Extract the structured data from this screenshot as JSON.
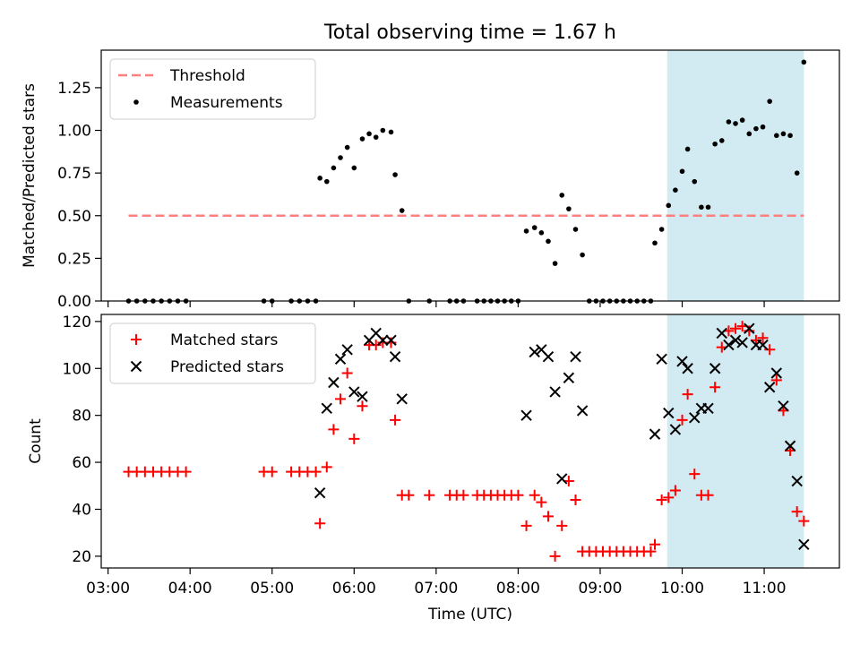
{
  "figure": {
    "title": "Total observing time = 1.67 h"
  },
  "chart_data": [
    {
      "type": "scatter",
      "panel": "top",
      "title": "Total observing time = 1.67 h",
      "xlabel": "",
      "ylabel": "Matched/Predicted stars",
      "xlim": [
        "02:55",
        "11:55"
      ],
      "ylim": [
        0,
        1.47
      ],
      "yticks": [
        0.0,
        0.25,
        0.5,
        0.75,
        1.0,
        1.25
      ],
      "ytick_labels": [
        "0.00",
        "0.25",
        "0.50",
        "0.75",
        "1.00",
        "1.25"
      ],
      "legend_position": "top-left",
      "highlight_span": {
        "from": "09:49",
        "to": "11:29",
        "color": "#add8e6"
      },
      "series": [
        {
          "name": "Threshold",
          "kind": "dashed-line",
          "color": "#ff7f7f",
          "x": [
            "03:15",
            "11:29"
          ],
          "y": [
            0.5,
            0.5
          ]
        },
        {
          "name": "Measurements",
          "kind": "points",
          "color": "#000000",
          "points": [
            [
              "03:15",
              0
            ],
            [
              "03:21",
              0
            ],
            [
              "03:27",
              0
            ],
            [
              "03:33",
              0
            ],
            [
              "03:39",
              0
            ],
            [
              "03:45",
              0
            ],
            [
              "03:51",
              0
            ],
            [
              "03:57",
              0
            ],
            [
              "04:54",
              0
            ],
            [
              "05:00",
              0
            ],
            [
              "05:14",
              0
            ],
            [
              "05:20",
              0
            ],
            [
              "05:26",
              0
            ],
            [
              "05:32",
              0
            ],
            [
              "05:35",
              0.72
            ],
            [
              "05:40",
              0.7
            ],
            [
              "05:45",
              0.78
            ],
            [
              "05:50",
              0.84
            ],
            [
              "05:55",
              0.9
            ],
            [
              "06:00",
              0.78
            ],
            [
              "06:06",
              0.95
            ],
            [
              "06:11",
              0.98
            ],
            [
              "06:16",
              0.96
            ],
            [
              "06:21",
              1.0
            ],
            [
              "06:27",
              0.99
            ],
            [
              "06:30",
              0.74
            ],
            [
              "06:35",
              0.53
            ],
            [
              "06:40",
              0
            ],
            [
              "06:55",
              0
            ],
            [
              "07:10",
              0
            ],
            [
              "07:15",
              0
            ],
            [
              "07:20",
              0
            ],
            [
              "07:30",
              0
            ],
            [
              "07:35",
              0
            ],
            [
              "07:40",
              0
            ],
            [
              "07:45",
              0
            ],
            [
              "07:50",
              0
            ],
            [
              "07:55",
              0
            ],
            [
              "08:00",
              0
            ],
            [
              "08:06",
              0.41
            ],
            [
              "08:12",
              0.43
            ],
            [
              "08:17",
              0.4
            ],
            [
              "08:22",
              0.35
            ],
            [
              "08:27",
              0.22
            ],
            [
              "08:32",
              0.62
            ],
            [
              "08:37",
              0.54
            ],
            [
              "08:42",
              0.42
            ],
            [
              "08:47",
              0.27
            ],
            [
              "08:52",
              0
            ],
            [
              "08:57",
              0
            ],
            [
              "09:02",
              0
            ],
            [
              "09:07",
              0
            ],
            [
              "09:12",
              0
            ],
            [
              "09:17",
              0
            ],
            [
              "09:22",
              0
            ],
            [
              "09:27",
              0
            ],
            [
              "09:32",
              0
            ],
            [
              "09:37",
              0
            ],
            [
              "09:40",
              0.34
            ],
            [
              "09:45",
              0.42
            ],
            [
              "09:50",
              0.56
            ],
            [
              "09:55",
              0.65
            ],
            [
              "10:00",
              0.76
            ],
            [
              "10:04",
              0.89
            ],
            [
              "10:09",
              0.7
            ],
            [
              "10:14",
              0.55
            ],
            [
              "10:19",
              0.55
            ],
            [
              "10:24",
              0.92
            ],
            [
              "10:29",
              0.94
            ],
            [
              "10:34",
              1.05
            ],
            [
              "10:39",
              1.04
            ],
            [
              "10:44",
              1.06
            ],
            [
              "10:49",
              0.98
            ],
            [
              "10:54",
              1.01
            ],
            [
              "10:59",
              1.02
            ],
            [
              "11:04",
              1.17
            ],
            [
              "11:09",
              0.97
            ],
            [
              "11:14",
              0.98
            ],
            [
              "11:19",
              0.97
            ],
            [
              "11:24",
              0.75
            ],
            [
              "11:29",
              1.4
            ]
          ]
        }
      ]
    },
    {
      "type": "scatter",
      "panel": "bottom",
      "title": "",
      "xlabel": "Time (UTC)",
      "ylabel": "Count",
      "xlim": [
        "02:55",
        "11:55"
      ],
      "ylim": [
        15,
        123
      ],
      "yticks": [
        20,
        40,
        60,
        80,
        100,
        120
      ],
      "xticks": [
        "03:00",
        "04:00",
        "05:00",
        "06:00",
        "07:00",
        "08:00",
        "09:00",
        "10:00",
        "11:00"
      ],
      "legend_position": "top-left",
      "highlight_span": {
        "from": "09:49",
        "to": "11:29",
        "color": "#add8e6"
      },
      "series": [
        {
          "name": "Matched stars",
          "marker": "plus",
          "color": "#ff0000",
          "points": [
            [
              "03:15",
              56
            ],
            [
              "03:21",
              56
            ],
            [
              "03:27",
              56
            ],
            [
              "03:33",
              56
            ],
            [
              "03:39",
              56
            ],
            [
              "03:45",
              56
            ],
            [
              "03:51",
              56
            ],
            [
              "03:57",
              56
            ],
            [
              "04:54",
              56
            ],
            [
              "05:00",
              56
            ],
            [
              "05:14",
              56
            ],
            [
              "05:20",
              56
            ],
            [
              "05:26",
              56
            ],
            [
              "05:32",
              56
            ],
            [
              "05:35",
              34
            ],
            [
              "05:40",
              58
            ],
            [
              "05:45",
              74
            ],
            [
              "05:50",
              87
            ],
            [
              "05:55",
              98
            ],
            [
              "06:00",
              70
            ],
            [
              "06:06",
              84
            ],
            [
              "06:11",
              110
            ],
            [
              "06:16",
              110
            ],
            [
              "06:21",
              111
            ],
            [
              "06:27",
              111
            ],
            [
              "06:30",
              78
            ],
            [
              "06:35",
              46
            ],
            [
              "06:40",
              46
            ],
            [
              "06:55",
              46
            ],
            [
              "07:10",
              46
            ],
            [
              "07:15",
              46
            ],
            [
              "07:20",
              46
            ],
            [
              "07:30",
              46
            ],
            [
              "07:35",
              46
            ],
            [
              "07:40",
              46
            ],
            [
              "07:45",
              46
            ],
            [
              "07:50",
              46
            ],
            [
              "07:55",
              46
            ],
            [
              "08:00",
              46
            ],
            [
              "08:06",
              33
            ],
            [
              "08:12",
              46
            ],
            [
              "08:17",
              43
            ],
            [
              "08:22",
              37
            ],
            [
              "08:27",
              20
            ],
            [
              "08:32",
              33
            ],
            [
              "08:37",
              52
            ],
            [
              "08:42",
              44
            ],
            [
              "08:47",
              22
            ],
            [
              "08:52",
              22
            ],
            [
              "08:57",
              22
            ],
            [
              "09:02",
              22
            ],
            [
              "09:07",
              22
            ],
            [
              "09:12",
              22
            ],
            [
              "09:17",
              22
            ],
            [
              "09:22",
              22
            ],
            [
              "09:27",
              22
            ],
            [
              "09:32",
              22
            ],
            [
              "09:37",
              22
            ],
            [
              "09:40",
              25
            ],
            [
              "09:45",
              44
            ],
            [
              "09:50",
              45
            ],
            [
              "09:55",
              48
            ],
            [
              "10:00",
              78
            ],
            [
              "10:04",
              89
            ],
            [
              "10:09",
              55
            ],
            [
              "10:14",
              46
            ],
            [
              "10:19",
              46
            ],
            [
              "10:24",
              92
            ],
            [
              "10:29",
              109
            ],
            [
              "10:34",
              116
            ],
            [
              "10:39",
              117
            ],
            [
              "10:44",
              118
            ],
            [
              "10:49",
              116
            ],
            [
              "10:54",
              112
            ],
            [
              "10:59",
              113
            ],
            [
              "11:04",
              108
            ],
            [
              "11:09",
              95
            ],
            [
              "11:14",
              82
            ],
            [
              "11:19",
              65
            ],
            [
              "11:24",
              39
            ],
            [
              "11:29",
              35
            ]
          ]
        },
        {
          "name": "Predicted stars",
          "marker": "x",
          "color": "#000000",
          "points": [
            [
              "05:35",
              47
            ],
            [
              "05:40",
              83
            ],
            [
              "05:45",
              94
            ],
            [
              "05:50",
              104
            ],
            [
              "05:55",
              108
            ],
            [
              "06:00",
              90
            ],
            [
              "06:06",
              88
            ],
            [
              "06:11",
              112
            ],
            [
              "06:16",
              115
            ],
            [
              "06:21",
              112
            ],
            [
              "06:27",
              112
            ],
            [
              "06:30",
              105
            ],
            [
              "06:35",
              87
            ],
            [
              "08:06",
              80
            ],
            [
              "08:12",
              107
            ],
            [
              "08:17",
              108
            ],
            [
              "08:22",
              105
            ],
            [
              "08:27",
              90
            ],
            [
              "08:32",
              53
            ],
            [
              "08:37",
              96
            ],
            [
              "08:42",
              105
            ],
            [
              "08:47",
              82
            ],
            [
              "09:40",
              72
            ],
            [
              "09:45",
              104
            ],
            [
              "09:50",
              81
            ],
            [
              "09:55",
              74
            ],
            [
              "10:00",
              103
            ],
            [
              "10:04",
              100
            ],
            [
              "10:09",
              79
            ],
            [
              "10:14",
              83
            ],
            [
              "10:19",
              83
            ],
            [
              "10:24",
              100
            ],
            [
              "10:29",
              115
            ],
            [
              "10:34",
              110
            ],
            [
              "10:39",
              112
            ],
            [
              "10:44",
              111
            ],
            [
              "10:49",
              117
            ],
            [
              "10:54",
              110
            ],
            [
              "10:59",
              110
            ],
            [
              "11:04",
              92
            ],
            [
              "11:09",
              98
            ],
            [
              "11:14",
              84
            ],
            [
              "11:19",
              67
            ],
            [
              "11:24",
              52
            ],
            [
              "11:29",
              25
            ]
          ]
        }
      ]
    }
  ]
}
